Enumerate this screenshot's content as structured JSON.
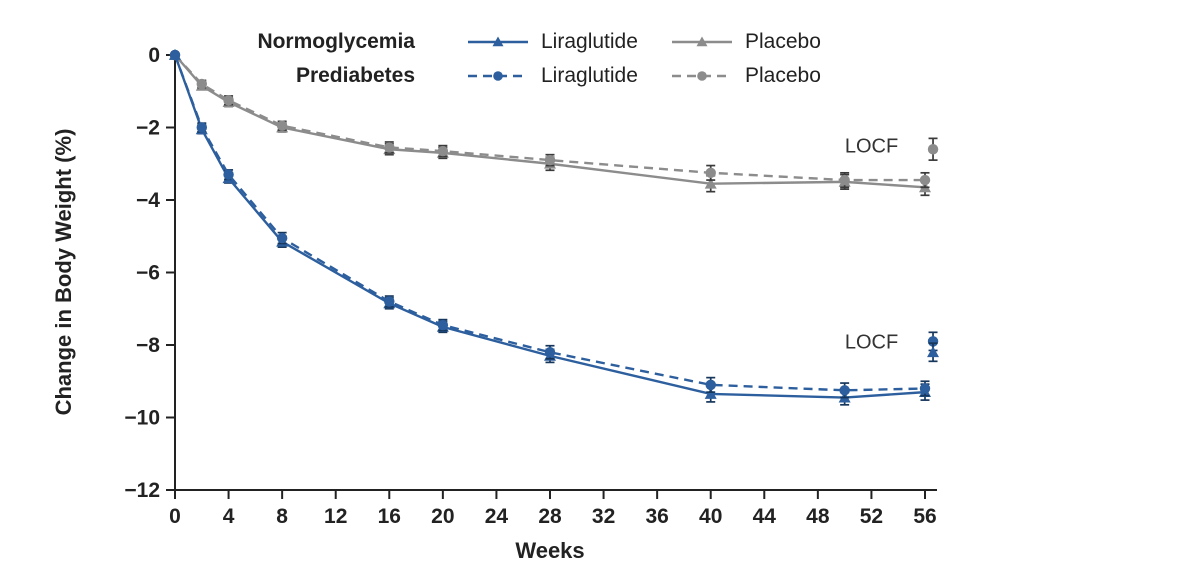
{
  "chart_data": {
    "type": "line",
    "title": "",
    "xlabel": "Weeks",
    "ylabel": "Change in Body Weight (%)",
    "xlim": [
      0,
      57.5
    ],
    "ylim": [
      -12,
      0
    ],
    "grid": false,
    "x_ticks": [
      0,
      4,
      8,
      12,
      16,
      20,
      24,
      28,
      32,
      36,
      40,
      44,
      48,
      52,
      56
    ],
    "y_ticks": [
      0,
      -2,
      -4,
      -6,
      -8,
      -10,
      -12
    ],
    "y_tick_labels": [
      "0",
      "−2",
      "−4",
      "−6",
      "−8",
      "−10",
      "−12"
    ],
    "weeks": [
      0,
      2,
      4,
      8,
      16,
      20,
      28,
      40,
      50,
      56
    ],
    "series": [
      {
        "name": "Normoglycemia Liraglutide",
        "group": "Normoglycemia",
        "label": "Liraglutide",
        "color": "#2d5f9e",
        "err_color": "#16365c",
        "marker": "triangle",
        "dash": "solid",
        "values": [
          0,
          -2.05,
          -3.4,
          -5.15,
          -6.85,
          -7.5,
          -8.3,
          -9.35,
          -9.45,
          -9.3
        ],
        "err": [
          0,
          0.12,
          0.13,
          0.15,
          0.15,
          0.15,
          0.18,
          0.22,
          0.2,
          0.22
        ]
      },
      {
        "name": "Prediabetes Liraglutide",
        "group": "Prediabetes",
        "label": "Liraglutide",
        "color": "#2d5f9e",
        "err_color": "#16365c",
        "marker": "circle",
        "dash": "dashed",
        "values": [
          0,
          -2.0,
          -3.3,
          -5.05,
          -6.8,
          -7.45,
          -8.2,
          -9.1,
          -9.25,
          -9.2
        ],
        "err": [
          0,
          0.12,
          0.13,
          0.15,
          0.15,
          0.15,
          0.18,
          0.2,
          0.2,
          0.2
        ]
      },
      {
        "name": "Normoglycemia Placebo",
        "group": "Normoglycemia",
        "label": "Placebo",
        "color": "#8c8c8c",
        "err_color": "#3a3a3a",
        "marker": "triangle",
        "dash": "solid",
        "values": [
          0,
          -0.85,
          -1.3,
          -2.0,
          -2.6,
          -2.7,
          -3.0,
          -3.55,
          -3.5,
          -3.65
        ],
        "err": [
          0,
          0.1,
          0.12,
          0.12,
          0.15,
          0.15,
          0.18,
          0.22,
          0.2,
          0.22
        ]
      },
      {
        "name": "Prediabetes Placebo",
        "group": "Prediabetes",
        "label": "Placebo",
        "color": "#8c8c8c",
        "err_color": "#3a3a3a",
        "marker": "circle",
        "dash": "dashed",
        "values": [
          0,
          -0.8,
          -1.25,
          -1.95,
          -2.55,
          -2.65,
          -2.9,
          -3.25,
          -3.45,
          -3.45
        ],
        "err": [
          0,
          0.1,
          0.12,
          0.12,
          0.15,
          0.15,
          0.15,
          0.2,
          0.2,
          0.2
        ]
      }
    ],
    "locf": {
      "points": [
        {
          "week": 56.6,
          "value": -2.6,
          "err": 0.3,
          "color": "#8c8c8c",
          "err_color": "#3a3a3a",
          "marker": "circle"
        },
        {
          "week": 56.6,
          "value": -7.9,
          "err": 0.25,
          "color": "#2d5f9e",
          "err_color": "#16365c",
          "marker": "circle"
        },
        {
          "week": 56.6,
          "value": -8.2,
          "err": 0.25,
          "color": "#2d5f9e",
          "err_color": "#16365c",
          "marker": "triangle"
        }
      ],
      "labels": [
        {
          "text": "LOCF",
          "week": 54.0,
          "value": -2.5,
          "color": "#333333"
        },
        {
          "text": "LOCF",
          "week": 54.0,
          "value": -7.9,
          "color": "#333333"
        }
      ]
    },
    "legend": {
      "rows": [
        {
          "group": "Normoglycemia",
          "items": [
            {
              "label": "Liraglutide",
              "series": 0
            },
            {
              "label": "Placebo",
              "series": 2
            }
          ]
        },
        {
          "group": "Prediabetes",
          "items": [
            {
              "label": "Liraglutide",
              "series": 1
            },
            {
              "label": "Placebo",
              "series": 3
            }
          ]
        }
      ]
    },
    "colors": {
      "liraglutide_blue": "#2d5f9e",
      "placebo_gray": "#8c8c8c",
      "axis_text": "#222222"
    }
  }
}
